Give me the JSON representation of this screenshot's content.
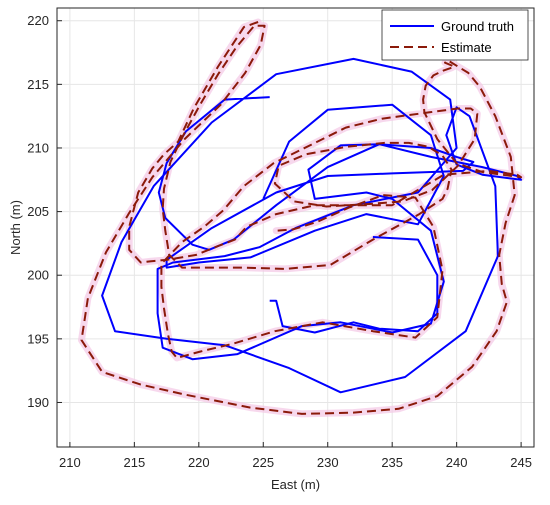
{
  "chart_data": {
    "type": "line",
    "title": "",
    "xlabel": "East (m)",
    "ylabel": "North (m)",
    "xlim": [
      209,
      246
    ],
    "ylim": [
      186.5,
      221
    ],
    "x_ticks": [
      210,
      215,
      220,
      225,
      230,
      235,
      240,
      245
    ],
    "y_ticks": [
      190,
      195,
      200,
      205,
      210,
      215,
      220
    ],
    "grid": true,
    "legend_position": "top-right",
    "series": [
      {
        "name": "Ground truth",
        "style": "solid",
        "color": "#0000ff",
        "x": [
          225.5,
          222,
          219,
          217.5,
          216.9,
          217.4,
          219.5,
          220.8,
          222.7,
          226,
          230,
          234,
          238,
          242,
          244.7,
          245,
          242,
          240,
          239.2,
          240,
          241,
          243,
          243.2,
          240.7,
          236,
          231,
          227,
          222,
          217.5,
          213.5,
          212.5,
          214,
          216.5,
          221,
          226,
          232,
          236.5,
          239.5,
          240,
          237,
          232,
          227.5,
          224.7,
          222,
          218,
          216.8,
          216.8,
          217.2,
          219.5,
          223,
          228,
          231,
          235,
          238,
          239,
          238,
          235,
          233,
          229,
          228.5,
          231,
          234,
          238,
          240,
          241.3,
          240.5,
          235,
          230,
          226,
          221,
          217.5,
          217.5,
          220,
          224,
          229,
          233,
          237,
          239,
          238,
          235,
          230,
          227,
          225
        ],
        "y": [
          214,
          213.8,
          211.3,
          208.8,
          206.5,
          204.5,
          202.4,
          202,
          202.8,
          205.5,
          208.5,
          210.3,
          209.3,
          208.5,
          207.8,
          207.5,
          207.9,
          208.7,
          211,
          213.2,
          212.5,
          207,
          201.5,
          195.6,
          192,
          190.8,
          192.7,
          194.5,
          195,
          195.6,
          198.4,
          202.6,
          207,
          212,
          215.8,
          217,
          216,
          213.8,
          210,
          206.5,
          205.5,
          203.7,
          202.2,
          201.5,
          201,
          200.5,
          197,
          194.3,
          193.4,
          193.8,
          196,
          196.3,
          195.5,
          196.2,
          199.5,
          203.5,
          206,
          206.5,
          206,
          208.3,
          210.2,
          210.3,
          210,
          209.3,
          208.9,
          208.2,
          208,
          207.8,
          206.5,
          203.7,
          201.2,
          200.6,
          201,
          201.4,
          203.5,
          204.8,
          204,
          207.8,
          211,
          213.4,
          213,
          210.5,
          206
        ],
        "x2": [
          233.5,
          237,
          238.5,
          238.5,
          237,
          234,
          232,
          229,
          226.5,
          226,
          225.5
        ],
        "y2": [
          203,
          202.8,
          200,
          197,
          195.6,
          195.8,
          196.3,
          195.5,
          196,
          198,
          198
        ]
      },
      {
        "name": "Estimate",
        "style": "dashed",
        "color": "#8b1a0a",
        "x": [
          224.6,
          223.5,
          221.5,
          219.6,
          218.4,
          217.3,
          216.4,
          215.3,
          214.6,
          214.6,
          215.5,
          216.3,
          217.5,
          219.8,
          221.5,
          222.8,
          223.7,
          226,
          229,
          231,
          235,
          239,
          242.5,
          244.7,
          245,
          242,
          240,
          238.5,
          237.5,
          237.4,
          237.6,
          238.2,
          239,
          239.6,
          239.8,
          239.1,
          239.3,
          240.9,
          241.8,
          243,
          244.2,
          244.5,
          243.8,
          243.3,
          243.5,
          243.9,
          243.1,
          241.2,
          238.5,
          235.5,
          232,
          228,
          224,
          219,
          215.5,
          212.5,
          210.9,
          211.4,
          212.8,
          214.6,
          216.4,
          218.9,
          221.7,
          223.6,
          224.8,
          225.1,
          224.3,
          222.9,
          221.5,
          220.1,
          218.8,
          217.8,
          217.3,
          217.2,
          217.4,
          217.7,
          218.7,
          220.3,
          223.4,
          226.7,
          230.2,
          233.5,
          237.1,
          238.9,
          239.3,
          239.6,
          238.9,
          237.8,
          236.3,
          234.4,
          231.5,
          228.3,
          226.2,
          225.9,
          227.4,
          229.9,
          233.2,
          235.8,
          238.1,
          240.1,
          241.4,
          241.6,
          241.1,
          240.1,
          237.9,
          234.2,
          231.4,
          228.8,
          225.8,
          223.5,
          221.9,
          220.4,
          218.7,
          217.1,
          217.1,
          217.3,
          217.6,
          217.9,
          218.3,
          220.1,
          222.6,
          225.9,
          229.6,
          233.5,
          236.8,
          238.5,
          238.9,
          238.2,
          236.8,
          234.3,
          231.6,
          229.2,
          227.3,
          226
        ],
        "y": [
          219.9,
          219.5,
          216.4,
          213.1,
          210.5,
          209.5,
          208.4,
          206.5,
          203.8,
          202,
          201,
          201.1,
          201.2,
          201.6,
          202.3,
          202.8,
          203.8,
          204.8,
          205.5,
          205.5,
          205.5,
          207.9,
          208.2,
          207.9,
          207.7,
          208.1,
          208.8,
          210.7,
          212.8,
          213.8,
          214.9,
          215.7,
          216.1,
          216.3,
          216.4,
          216.7,
          216.9,
          215.9,
          214.8,
          212.5,
          209.3,
          206.3,
          204.1,
          201.6,
          199.3,
          197.9,
          195.6,
          192.8,
          190.5,
          189.5,
          189.2,
          189.1,
          189.6,
          190.6,
          191.4,
          192.4,
          194.9,
          198.2,
          201.8,
          204.9,
          207.7,
          210.7,
          213.4,
          215.9,
          218.1,
          219.6,
          219.6,
          217.9,
          215.8,
          213.4,
          211,
          208.9,
          206.8,
          205.2,
          203.5,
          201.6,
          200.6,
          200.6,
          200.6,
          200.5,
          200.8,
          202.8,
          204.8,
          206,
          206.8,
          208.3,
          209.4,
          210.1,
          210.4,
          210.4,
          210.1,
          209.5,
          208.6,
          207.2,
          205.8,
          205.4,
          205.6,
          205.8,
          206.7,
          208.6,
          210.7,
          212.7,
          213.1,
          213.1,
          212.8,
          212.3,
          211.6,
          210.3,
          208.8,
          207,
          205.1,
          203.8,
          202.6,
          200.9,
          199.1,
          197.4,
          195.4,
          194,
          193.5,
          194,
          194.6,
          195.6,
          196.3,
          195.6,
          195.1,
          196.7,
          200.4,
          203.8,
          206.1,
          206.3,
          205.3,
          204.2,
          203.6,
          203.5
        ]
      }
    ]
  },
  "legend": {
    "entries": [
      {
        "label": "Ground truth",
        "color": "#0000ff",
        "style": "solid"
      },
      {
        "label": "Estimate",
        "color": "#8b1a0a",
        "style": "dashed"
      }
    ]
  },
  "colors": {
    "ground_truth": "#0000ff",
    "estimate": "#8b1a0a",
    "estimate_halo": "#f4c7e6",
    "grid": "#e6e6e6",
    "axis": "#262626"
  }
}
